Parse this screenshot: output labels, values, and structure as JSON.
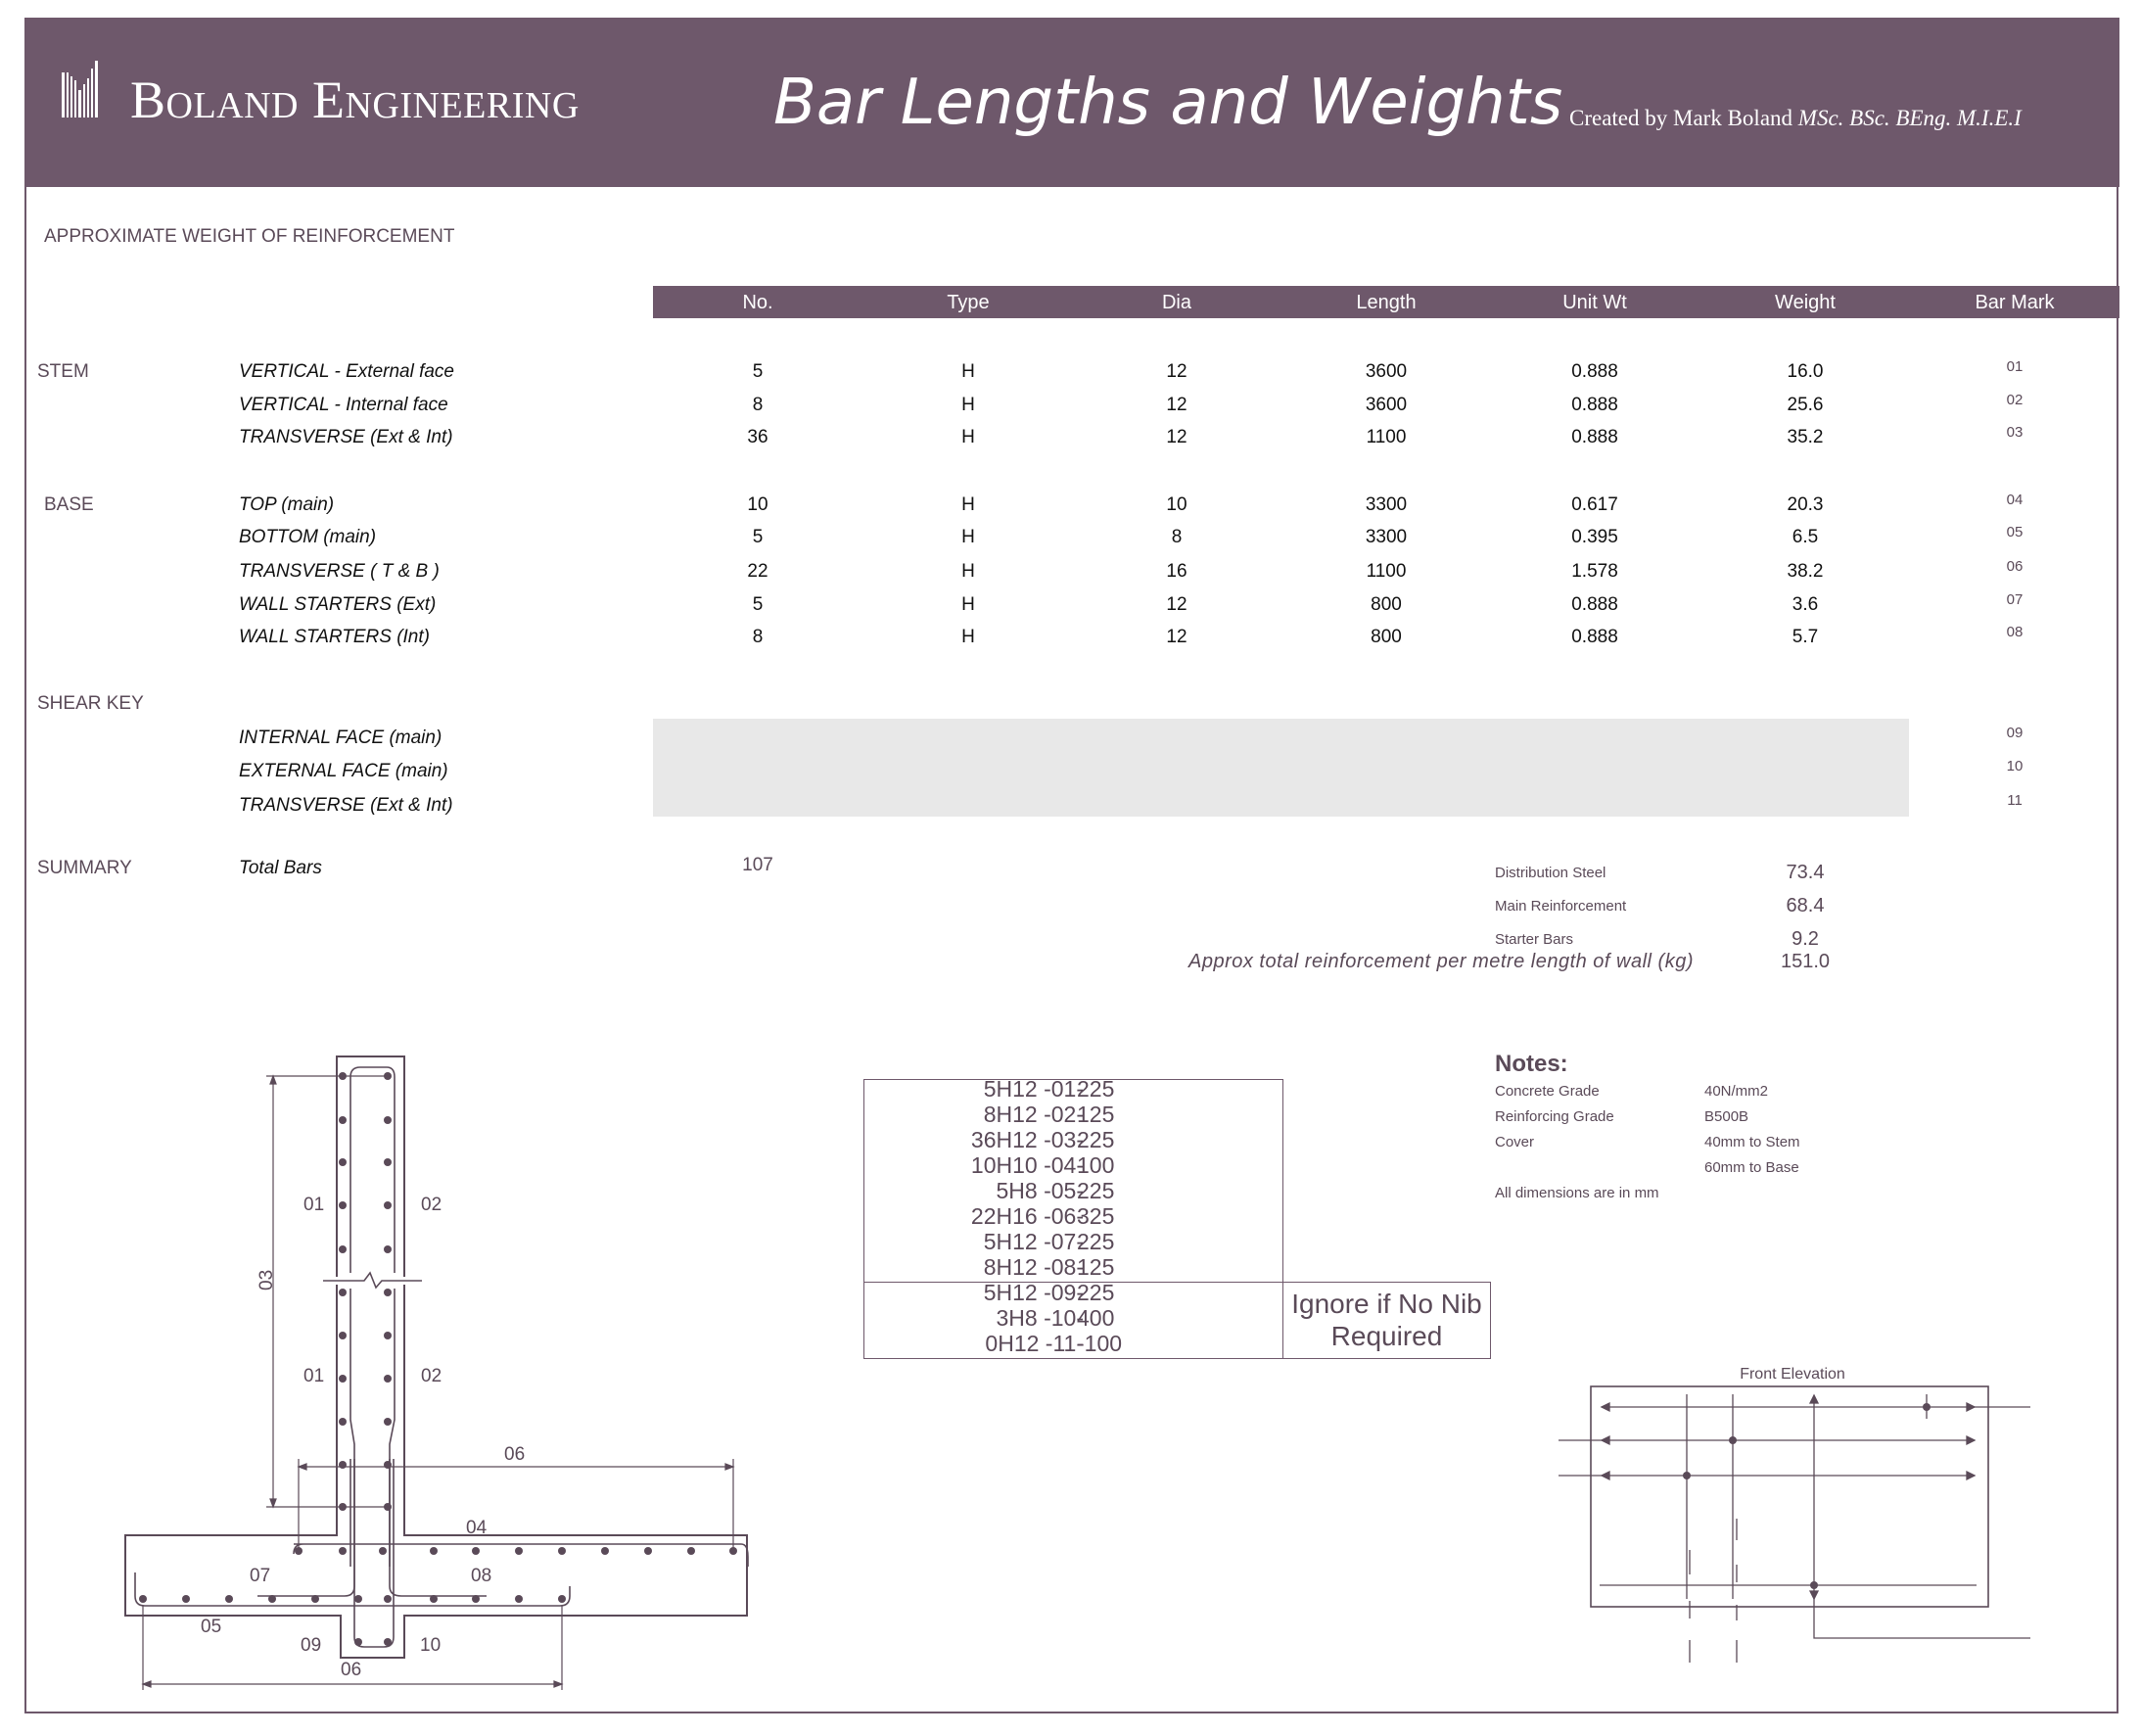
{
  "header": {
    "logo_text": "Boland Engineering",
    "title": "Bar Lengths and Weights",
    "credit_name": "Created by Mark Boland ",
    "credit_quals": "MSc. BSc. BEng. M.I.E.I"
  },
  "section_title": "APPROXIMATE WEIGHT OF REINFORCEMENT",
  "table": {
    "columns": [
      "No.",
      "Type",
      "Dia",
      "Length",
      "Unit Wt",
      "Weight",
      "Bar Mark"
    ],
    "groups": [
      {
        "label": "STEM",
        "rows": [
          {
            "desc": "VERTICAL  - External face",
            "no": "5",
            "type": "H",
            "dia": "12",
            "length": "3600",
            "unit_wt": "0.888",
            "weight": "16.0",
            "mark": "01"
          },
          {
            "desc": "VERTICAL  - Internal face",
            "no": "8",
            "type": "H",
            "dia": "12",
            "length": "3600",
            "unit_wt": "0.888",
            "weight": "25.6",
            "mark": "02"
          },
          {
            "desc": "TRANSVERSE  (Ext & Int)",
            "no": "36",
            "type": "H",
            "dia": "12",
            "length": "1100",
            "unit_wt": "0.888",
            "weight": "35.2",
            "mark": "03"
          }
        ]
      },
      {
        "label": "BASE",
        "rows": [
          {
            "desc": "TOP  (main)",
            "no": "10",
            "type": "H",
            "dia": "10",
            "length": "3300",
            "unit_wt": "0.617",
            "weight": "20.3",
            "mark": "04"
          },
          {
            "desc": "BOTTOM  (main)",
            "no": "5",
            "type": "H",
            "dia": "8",
            "length": "3300",
            "unit_wt": "0.395",
            "weight": "6.5",
            "mark": "05"
          },
          {
            "desc": "TRANSVERSE  ( T & B )",
            "no": "22",
            "type": "H",
            "dia": "16",
            "length": "1100",
            "unit_wt": "1.578",
            "weight": "38.2",
            "mark": "06"
          },
          {
            "desc": "WALL STARTERS  (Ext)",
            "no": "5",
            "type": "H",
            "dia": "12",
            "length": "800",
            "unit_wt": "0.888",
            "weight": "3.6",
            "mark": "07"
          },
          {
            "desc": "WALL STARTERS  (Int)",
            "no": "8",
            "type": "H",
            "dia": "12",
            "length": "800",
            "unit_wt": "0.888",
            "weight": "5.7",
            "mark": "08"
          }
        ]
      },
      {
        "label": "SHEAR KEY",
        "rows": [
          {
            "desc": "INTERNAL FACE  (main)",
            "mark": "09"
          },
          {
            "desc": "EXTERNAL FACE  (main)",
            "mark": "10"
          },
          {
            "desc": "TRANSVERSE  (Ext & Int)",
            "mark": "11"
          }
        ]
      }
    ]
  },
  "summary": {
    "label": "SUMMARY",
    "total_bars_label": "Total Bars",
    "total_bars": "107",
    "items": [
      {
        "label": "Distribution Steel",
        "value": "73.4"
      },
      {
        "label": "Main Reinforcement",
        "value": "68.4"
      },
      {
        "label": "Starter Bars",
        "value": "9.2"
      }
    ],
    "approx_label": "Approx total reinforcement per metre length of wall  (kg)",
    "approx_value": "151.0"
  },
  "schedule": {
    "lines": [
      {
        "code": "5H12 -01-",
        "spacing": "225"
      },
      {
        "code": "8H12 -02-",
        "spacing": "125"
      },
      {
        "code": "36H12 -03-",
        "spacing": "225"
      },
      {
        "code": "10H10 -04-",
        "spacing": "100"
      },
      {
        "code": "5H8 -05-",
        "spacing": "225"
      },
      {
        "code": "22H16 -06-",
        "spacing": "325"
      },
      {
        "code": "5H12 -07-",
        "spacing": "225"
      },
      {
        "code": "8H12 -08-",
        "spacing": "125"
      },
      {
        "code": "5H12 -09-",
        "spacing": "225"
      },
      {
        "code": "3H8 -10-",
        "spacing": "400"
      },
      {
        "code": "0H12 -11-",
        "spacing": "-100"
      }
    ],
    "nib_note": "Ignore if No Nib Required"
  },
  "notes": {
    "title": "Notes:",
    "items": [
      {
        "key": "Concrete Grade",
        "value": "40N/mm2"
      },
      {
        "key": "Reinforcing Grade",
        "value": "B500B"
      },
      {
        "key": "Cover",
        "value": "40mm to Stem"
      },
      {
        "key": "",
        "value": "60mm to Base"
      }
    ],
    "dimensions_note": "All dimensions are in mm"
  },
  "section_drawing": {
    "labels": [
      "01",
      "02",
      "01",
      "02",
      "03",
      "06",
      "04",
      "07",
      "08",
      "05",
      "09",
      "10",
      "06"
    ]
  },
  "front_elevation": {
    "title": "Front Elevation"
  },
  "colors": {
    "brand": "#6e586b",
    "shade": "#e8e8e8",
    "label_text": "#5a4a58"
  }
}
